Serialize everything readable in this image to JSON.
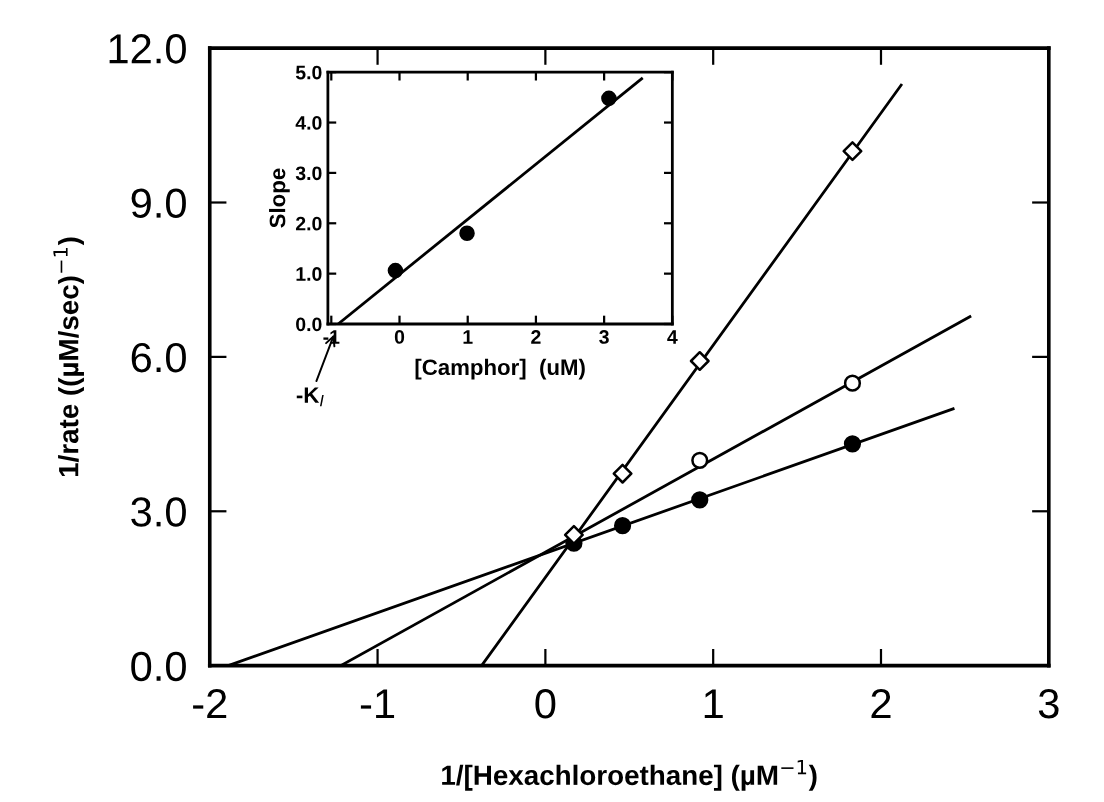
{
  "chart_data": [
    {
      "type": "scatter",
      "xlabel": "1/[Hexachloroethane] (µM$^{−1}$)",
      "ylabel": "1/rate ((µM/sec)$^{−1}$)",
      "xlim": [
        -2,
        3
      ],
      "ylim": [
        0,
        12
      ],
      "xticks": [
        -2,
        -1,
        0,
        1,
        2,
        3
      ],
      "yticks": [
        {
          "value": 0,
          "label": "0.0"
        },
        {
          "value": 3,
          "label": "3.0"
        },
        {
          "value": 6,
          "label": "6.0"
        },
        {
          "value": 9,
          "label": "9.0"
        },
        {
          "value": 12,
          "label": "12.0"
        }
      ],
      "grid": false,
      "legend": false,
      "series": [
        {
          "marker": "circle",
          "color": "#000000",
          "x": [
            0.17,
            0.46,
            0.92,
            1.83
          ],
          "values": [
            2.38,
            2.72,
            3.22,
            4.31
          ]
        },
        {
          "marker": "circle",
          "color": "#ffffff",
          "x": [
            0.92,
            1.83
          ],
          "values": [
            3.99,
            5.49
          ]
        },
        {
          "marker": "diamond",
          "color": "#ffffff",
          "x": [
            0.17,
            0.46,
            0.92,
            1.83
          ],
          "values": [
            2.54,
            3.73,
            5.92,
            10.0
          ]
        },
        {
          "type": "line",
          "color": "#000000",
          "x": [
            -1.89,
            2.43
          ],
          "values": [
            0,
            4.99
          ]
        },
        {
          "type": "line",
          "color": "#000000",
          "x": [
            -1.22,
            2.53
          ],
          "values": [
            0,
            6.78
          ]
        },
        {
          "type": "line",
          "color": "#000000",
          "x": [
            -0.38,
            2.12
          ],
          "values": [
            0,
            11.28
          ]
        }
      ]
    },
    {
      "type": "scatter",
      "xlabel": "[Camphor]  (uM)",
      "ylabel": "Slope",
      "xlim": [
        -1.05,
        4
      ],
      "ylim": [
        0,
        5
      ],
      "xticks": [
        -1,
        0,
        1,
        2,
        3,
        4
      ],
      "yticks": [
        {
          "value": 0,
          "label": "0.0"
        },
        {
          "value": 1,
          "label": "1.0"
        },
        {
          "value": 2,
          "label": "2.0"
        },
        {
          "value": 3,
          "label": "3.0"
        },
        {
          "value": 4,
          "label": "4.0"
        },
        {
          "value": 5,
          "label": "5.0"
        }
      ],
      "grid": false,
      "legend": false,
      "annotations": [
        {
          "text": "-K$_{I}$",
          "x": -0.9,
          "y": 0
        }
      ],
      "series": [
        {
          "marker": "circle",
          "color": "#000000",
          "x": [
            -0.06,
            0.99,
            3.07
          ],
          "values": [
            1.06,
            1.8,
            4.48
          ]
        },
        {
          "type": "line",
          "color": "#000000",
          "x": [
            -0.9,
            3.55
          ],
          "values": [
            0,
            4.87
          ]
        }
      ]
    }
  ]
}
